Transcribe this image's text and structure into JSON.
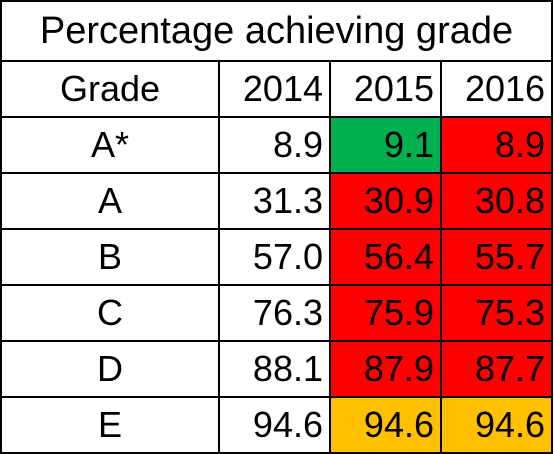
{
  "colors": {
    "red": "#ff0000",
    "green": "#00b050",
    "amber": "#ffc000",
    "none": "#ffffff"
  },
  "chart_data": {
    "type": "table",
    "title": "Percentage achieving grade",
    "columns": [
      "Grade",
      "2014",
      "2015",
      "2016"
    ],
    "rows": [
      {
        "grade": "A*",
        "values": [
          "8.9",
          "9.1",
          "8.9"
        ],
        "colors": [
          "none",
          "green",
          "red"
        ]
      },
      {
        "grade": "A",
        "values": [
          "31.3",
          "30.9",
          "30.8"
        ],
        "colors": [
          "none",
          "red",
          "red"
        ]
      },
      {
        "grade": "B",
        "values": [
          "57.0",
          "56.4",
          "55.7"
        ],
        "colors": [
          "none",
          "red",
          "red"
        ]
      },
      {
        "grade": "C",
        "values": [
          "76.3",
          "75.9",
          "75.3"
        ],
        "colors": [
          "none",
          "red",
          "red"
        ]
      },
      {
        "grade": "D",
        "values": [
          "88.1",
          "87.9",
          "87.7"
        ],
        "colors": [
          "none",
          "red",
          "red"
        ]
      },
      {
        "grade": "E",
        "values": [
          "94.6",
          "94.6",
          "94.6"
        ],
        "colors": [
          "none",
          "amber",
          "amber"
        ]
      }
    ]
  }
}
